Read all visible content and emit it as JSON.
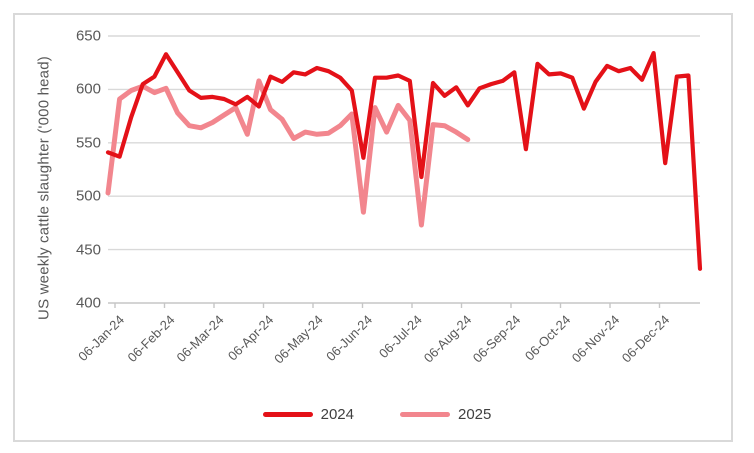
{
  "chart_data": {
    "type": "line",
    "title": "",
    "xlabel": "",
    "ylabel": "US weekly cattle slaughter ('000 head)",
    "ylim": [
      400,
      650
    ],
    "yticks": [
      400,
      450,
      500,
      550,
      600,
      650
    ],
    "grid": "horizontal-only",
    "legend_position": "bottom-center",
    "x_unit": "week-of-year",
    "x_tick_labels": [
      "06-Jan-24",
      "06-Feb-24",
      "06-Mar-24",
      "06-Apr-24",
      "06-May-24",
      "06-Jun-24",
      "06-Jul-24",
      "06-Aug-24",
      "06-Sep-24",
      "06-Oct-24",
      "06-Nov-24",
      "06-Dec-24"
    ],
    "series": [
      {
        "name": "2024",
        "color": "#e41118",
        "values": [
          541,
          537,
          574,
          605,
          612,
          633,
          616,
          599,
          592,
          593,
          591,
          586,
          593,
          584,
          612,
          607,
          616,
          614,
          620,
          617,
          611,
          599,
          536,
          611,
          611,
          613,
          608,
          518,
          606,
          594,
          602,
          585,
          601,
          605,
          608,
          616,
          544,
          624,
          614,
          615,
          611,
          582,
          607,
          622,
          617,
          620,
          609,
          634,
          531,
          612,
          613,
          432
        ]
      },
      {
        "name": "2025",
        "color": "#f2868e",
        "values": [
          503,
          591,
          599,
          603,
          597,
          601,
          578,
          566,
          564,
          569,
          576,
          583,
          558,
          608,
          581,
          572,
          554,
          560,
          558,
          559,
          566,
          577,
          485,
          583,
          560,
          585,
          571,
          473,
          567,
          566,
          560,
          553
        ]
      }
    ],
    "colors": {
      "gridline": "#d9d9d9",
      "axis_line": "#c6c6c6",
      "tick_mark": "#c6c6c6",
      "axis_text": "#595959",
      "legend_text": "#404040",
      "frame_border": "#d9d9d9",
      "background": "#ffffff"
    }
  }
}
